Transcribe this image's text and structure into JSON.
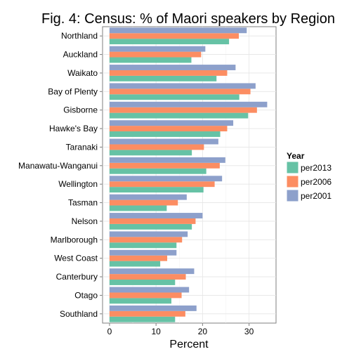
{
  "chart_data": {
    "type": "bar",
    "orientation": "horizontal",
    "title": "Fig. 4: Census: % of Maori speakers by Region",
    "xlabel": "Percent",
    "ylabel": "",
    "xlim": [
      -1.5,
      35.8
    ],
    "xticks": [
      0,
      10,
      20,
      30
    ],
    "grid": true,
    "legend_position": "right",
    "legend_title": "Year",
    "categories": [
      "Northland",
      "Auckland",
      "Waikato",
      "Bay of Plenty",
      "Gisborne",
      "Hawke's Bay",
      "Taranaki",
      "Manawatu-Wanganui",
      "Wellington",
      "Tasman",
      "Nelson",
      "Marlborough",
      "West Coast",
      "Canterbury",
      "Otago",
      "Southland"
    ],
    "series": [
      {
        "name": "per2013",
        "color": "#66c2a5",
        "values": [
          25.7,
          17.6,
          23.0,
          27.9,
          29.8,
          23.8,
          17.7,
          20.8,
          20.2,
          12.3,
          17.7,
          14.4,
          10.9,
          14.1,
          13.3,
          14.1
        ]
      },
      {
        "name": "per2006",
        "color": "#fc8d62",
        "values": [
          27.8,
          19.7,
          25.3,
          30.3,
          31.7,
          25.3,
          20.3,
          23.7,
          22.6,
          14.7,
          18.5,
          15.6,
          12.4,
          16.4,
          15.5,
          16.3
        ]
      },
      {
        "name": "per2001",
        "color": "#8da0cb",
        "values": [
          29.5,
          20.6,
          27.1,
          31.4,
          33.9,
          26.6,
          23.4,
          24.9,
          24.2,
          16.6,
          20.0,
          16.8,
          14.4,
          18.2,
          17.1,
          18.7
        ]
      }
    ]
  }
}
